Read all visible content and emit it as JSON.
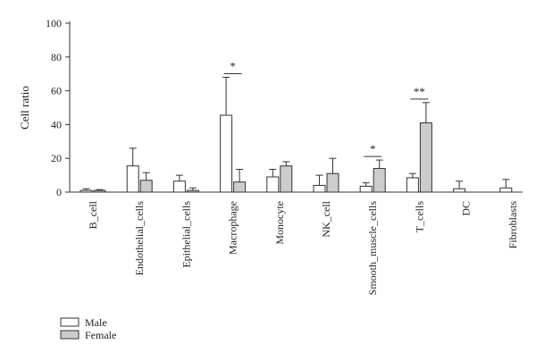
{
  "chart_data": {
    "type": "bar",
    "ylabel": "Cell ratio",
    "ylim": [
      0,
      100
    ],
    "yticks": [
      0,
      20,
      40,
      60,
      80,
      100
    ],
    "categories": [
      "B_cell",
      "Endothelial_cells",
      "Epithelial_cells",
      "Macrophage",
      "Monocyte",
      "NK_cell",
      "Smooth_muscle_cells",
      "T_cells",
      "DC",
      "Fibroblasts"
    ],
    "series": [
      {
        "name": "Male",
        "color": "#ffffff",
        "values": [
          1,
          15.5,
          6.5,
          45.5,
          9,
          4,
          3.5,
          8.5,
          2,
          2.5
        ],
        "errors": [
          1,
          10.5,
          3.5,
          22.5,
          4.5,
          6,
          2,
          2.5,
          4.5,
          5
        ]
      },
      {
        "name": "Female",
        "color": "#cccccc",
        "values": [
          1,
          7,
          1,
          6,
          15.5,
          11,
          14,
          41,
          0,
          0
        ],
        "errors": [
          0.5,
          4.5,
          1.5,
          7.5,
          2.5,
          9,
          5,
          12,
          0,
          0
        ]
      }
    ],
    "significance": [
      {
        "category": "Macrophage",
        "label": "*"
      },
      {
        "category": "Smooth_muscle_cells",
        "label": "*"
      },
      {
        "category": "T_cells",
        "label": "**"
      }
    ],
    "legend": {
      "placement": "bottom-left"
    }
  }
}
